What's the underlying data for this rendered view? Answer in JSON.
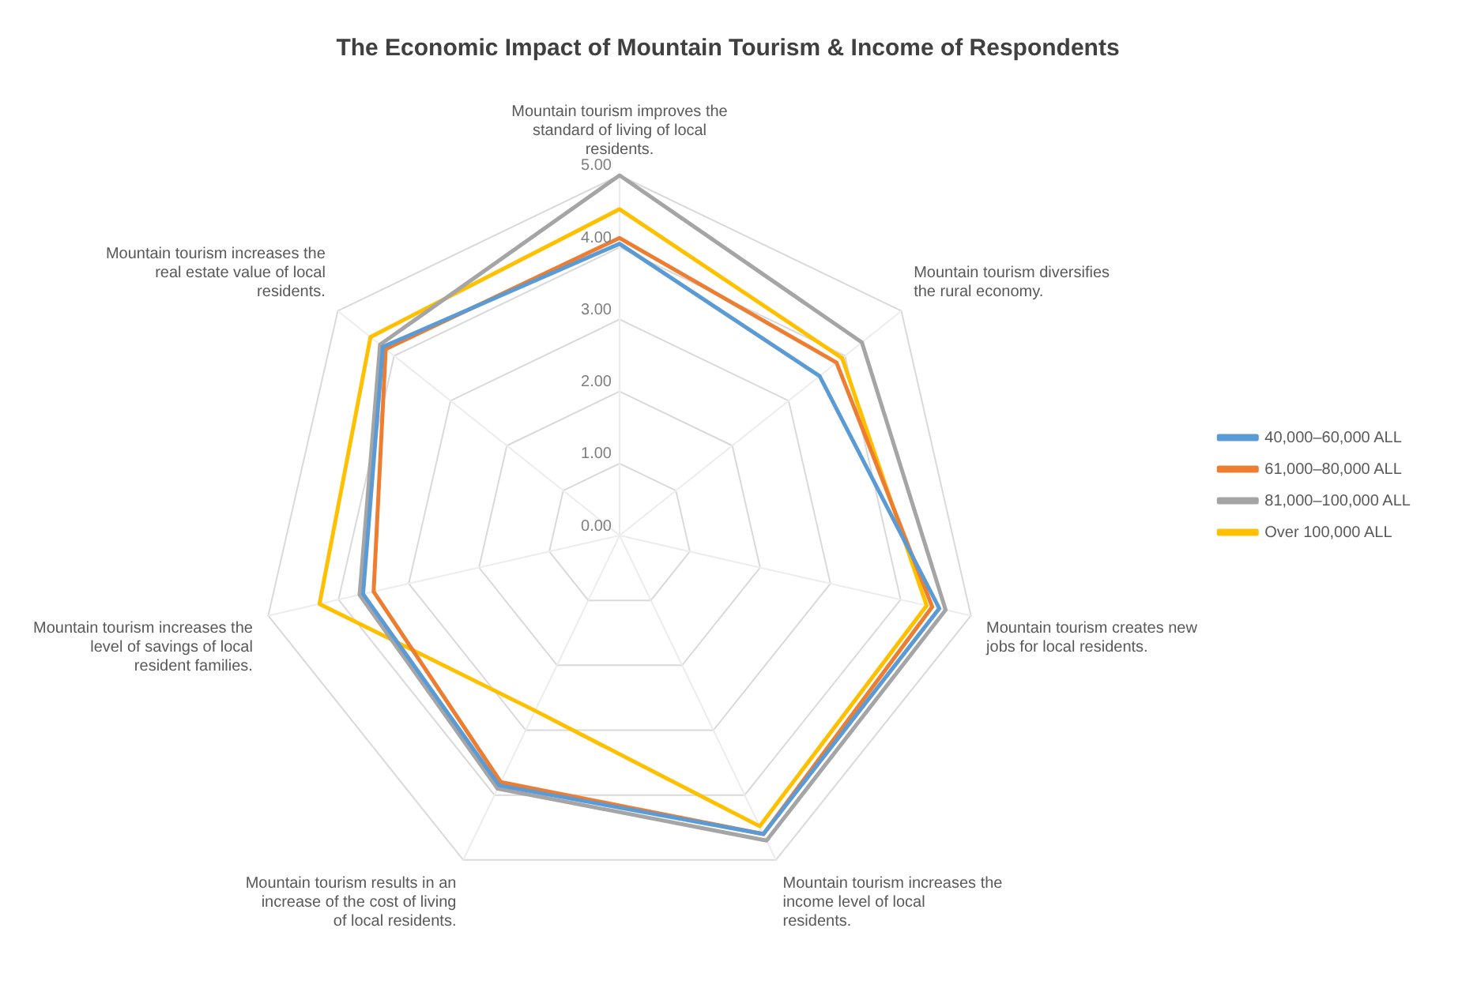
{
  "chart_data": {
    "type": "radar",
    "title": "The Economic Impact of Mountain Tourism & Income of Respondents",
    "categories": [
      "Mountain tourism improves the standard of living of local residents.",
      "Mountain tourism diversifies the rural economy.",
      "Mountain tourism creates new jobs for local residents.",
      "Mountain tourism increases the income level of local residents.",
      "Mountain tourism results in an increase of the cost of living of local residents.",
      "Mountain tourism increases the level of savings of local resident families.",
      "Mountain tourism increases the real estate value of local residents."
    ],
    "series": [
      {
        "name": "40,000–60,000 ALL",
        "color": "#5b9bd5",
        "values": [
          4.05,
          3.55,
          4.55,
          4.6,
          3.85,
          3.65,
          4.2
        ]
      },
      {
        "name": "61,000–80,000 ALL",
        "color": "#ed7d31",
        "values": [
          4.13,
          3.85,
          4.45,
          4.6,
          3.8,
          3.5,
          4.15
        ]
      },
      {
        "name": "81,000–100,000 ALL",
        "color": "#a5a5a5",
        "values": [
          5.0,
          4.3,
          4.64,
          4.7,
          3.9,
          3.7,
          4.25
        ]
      },
      {
        "name": "Over 100,000 ALL",
        "color": "#ffc000",
        "values": [
          4.53,
          3.95,
          4.37,
          4.48,
          2.7,
          4.27,
          4.42
        ]
      }
    ],
    "ylim": [
      0,
      5
    ],
    "yticks": [
      {
        "value": 0,
        "label": "0.00"
      },
      {
        "value": 1,
        "label": "1.00"
      },
      {
        "value": 2,
        "label": "2.00"
      },
      {
        "value": 3,
        "label": "3.00"
      },
      {
        "value": 4,
        "label": "4.00"
      },
      {
        "value": 5,
        "label": "5.00"
      }
    ],
    "grid": true,
    "legend": "right",
    "marker": "none",
    "line_style": "solid"
  }
}
